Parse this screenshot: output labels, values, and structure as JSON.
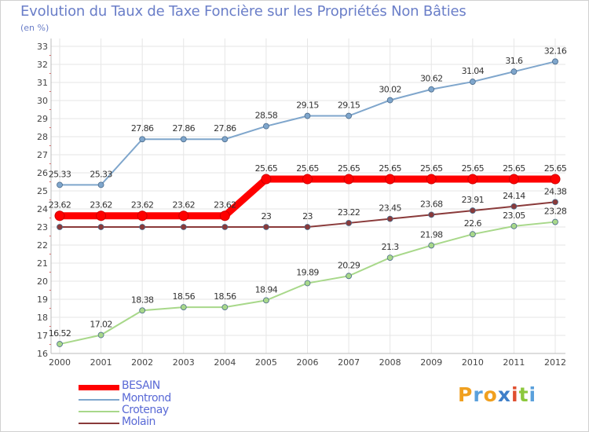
{
  "header": {
    "title": "Evolution du Taux de Taxe Foncière sur les Propriétés Non Bâties",
    "subtitle": "(en %)"
  },
  "logo": {
    "text": "Proxiti",
    "letters": [
      "P",
      "r",
      "o",
      "x",
      "i",
      "t",
      "i"
    ],
    "colors": [
      "#f0a020",
      "#5aa0dc",
      "#f0a020",
      "#3f7fc9",
      "#e05030",
      "#8cc83c",
      "#5aa0dc"
    ]
  },
  "chart_data": {
    "type": "line",
    "title": "Evolution du Taux de Taxe Foncière sur les Propriétés Non Bâties",
    "ylabel": "(en %)",
    "xlabel": "",
    "categories": [
      "2000",
      "2001",
      "2002",
      "2003",
      "2004",
      "2005",
      "2006",
      "2007",
      "2008",
      "2009",
      "2010",
      "2011",
      "2012"
    ],
    "ylim": [
      16,
      33
    ],
    "yticks": [
      "16",
      "17",
      "18",
      "19",
      "20",
      "21",
      "22",
      "23",
      "24",
      "25",
      "26",
      "27",
      "28",
      "29",
      "30",
      "31",
      "32",
      "33"
    ],
    "grid": true,
    "series": [
      {
        "name": "BESAIN",
        "color": "#ff0000",
        "values": [
          23.62,
          23.62,
          23.62,
          23.62,
          23.62,
          25.65,
          25.65,
          25.65,
          25.65,
          25.65,
          25.65,
          25.65,
          25.65
        ],
        "labels": [
          "23.62",
          "23.62",
          "23.62",
          "23.62",
          "23.62",
          "25.65",
          "25.65",
          "25.65",
          "25.65",
          "25.65",
          "25.65",
          "25.65",
          "25.65"
        ],
        "highlight": true
      },
      {
        "name": "Montrond",
        "color": "#7fa6cc",
        "values": [
          25.33,
          25.33,
          27.86,
          27.86,
          27.86,
          28.58,
          29.15,
          29.15,
          30.02,
          30.62,
          31.04,
          31.6,
          32.16
        ],
        "labels": [
          "25.33",
          "25.33",
          "27.86",
          "27.86",
          "27.86",
          "28.58",
          "29.15",
          "29.15",
          "30.02",
          "30.62",
          "31.04",
          "31.6",
          "32.16"
        ],
        "highlight": false
      },
      {
        "name": "Crotenay",
        "color": "#a8d88a",
        "values": [
          16.52,
          17.02,
          18.38,
          18.56,
          18.56,
          18.94,
          19.89,
          20.29,
          21.3,
          21.98,
          22.6,
          23.05,
          23.28
        ],
        "labels": [
          "16.52",
          "17.02",
          "18.38",
          "18.56",
          "18.56",
          "18.94",
          "19.89",
          "20.29",
          "21.3",
          "21.98",
          "22.6",
          "23.05",
          "23.28"
        ],
        "highlight": false
      },
      {
        "name": "Molain",
        "color": "#8a3a3a",
        "values": [
          23,
          23,
          23,
          23,
          23,
          23,
          23,
          23.22,
          23.45,
          23.68,
          23.91,
          24.14,
          24.38
        ],
        "labels": [
          "",
          "",
          "",
          "",
          "",
          "23",
          "23",
          "23.22",
          "23.45",
          "23.68",
          "23.91",
          "24.14",
          "24.38"
        ],
        "highlight": false
      }
    ]
  }
}
